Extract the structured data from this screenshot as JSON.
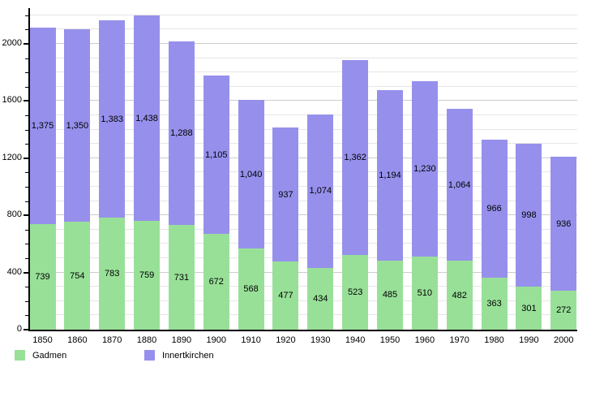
{
  "chart_data": {
    "type": "bar",
    "stacked": true,
    "title": "",
    "xlabel": "",
    "ylabel": "",
    "categories": [
      "1850",
      "1860",
      "1870",
      "1880",
      "1890",
      "1900",
      "1910",
      "1920",
      "1930",
      "1940",
      "1950",
      "1960",
      "1970",
      "1980",
      "1990",
      "2000"
    ],
    "series": [
      {
        "name": "Gadmen",
        "color": "#98E098",
        "values": [
          739,
          754,
          783,
          759,
          731,
          672,
          568,
          477,
          434,
          523,
          485,
          510,
          482,
          363,
          301,
          272
        ],
        "labels": [
          "739",
          "754",
          "783",
          "759",
          "731",
          "672",
          "568",
          "477",
          "434",
          "523",
          "485",
          "510",
          "482",
          "363",
          "301",
          "272"
        ]
      },
      {
        "name": "Innertkirchen",
        "color": "#9690EC",
        "values": [
          1375,
          1350,
          1383,
          1438,
          1288,
          1105,
          1040,
          937,
          1074,
          1362,
          1194,
          1230,
          1064,
          966,
          998,
          936
        ],
        "labels": [
          "1,375",
          "1,350",
          "1,383",
          "1,438",
          "1,288",
          "1,105",
          "1,040",
          "937",
          "1,074",
          "1,362",
          "1,194",
          "1,230",
          "1,064",
          "966",
          "998",
          "936"
        ]
      }
    ],
    "totals": [
      2114,
      2104,
      2166,
      2197,
      2019,
      1777,
      1608,
      1414,
      1508,
      1885,
      1679,
      1740,
      1546,
      1329,
      1299,
      1208
    ],
    "ylim": [
      0,
      2250
    ],
    "yticks": [
      {
        "value": 0,
        "label": "0"
      },
      {
        "value": 400,
        "label": "400"
      },
      {
        "value": 800,
        "label": "800"
      },
      {
        "value": 1200,
        "label": "1200"
      },
      {
        "value": 1600,
        "label": "1600"
      },
      {
        "value": 2000,
        "label": "2000"
      }
    ],
    "minor_grid_step": 100,
    "grid_max": 2200,
    "grid": true,
    "legend_position": "bottom",
    "legend": [
      {
        "label": "Gadmen",
        "color": "#98E098"
      },
      {
        "label": "Innertkirchen",
        "color": "#9690EC"
      }
    ],
    "axis_color": "#000000",
    "background_color": "#ffffff"
  }
}
